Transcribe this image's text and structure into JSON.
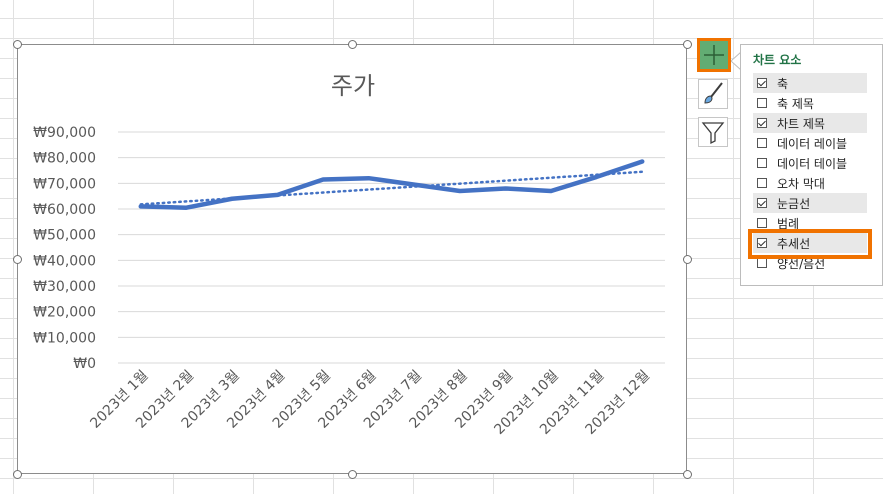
{
  "chart_data": {
    "type": "line",
    "title": "주가",
    "categories": [
      "2023년 1월",
      "2023년 2월",
      "2023년 3월",
      "2023년 4월",
      "2023년 5월",
      "2023년 6월",
      "2023년 7월",
      "2023년 8월",
      "2023년 9월",
      "2023년 10월",
      "2023년 11월",
      "2023년 12월"
    ],
    "series": [
      {
        "values": [
          61000,
          60500,
          64000,
          65500,
          71500,
          72000,
          69500,
          67000,
          68000,
          67000,
          72500,
          78500
        ],
        "color": "#4472c4"
      }
    ],
    "trendline": {
      "type": "linear",
      "style": "dotted",
      "values": [
        61800,
        74500
      ]
    },
    "ylim": [
      0,
      90000
    ],
    "yticks": [
      "₩0",
      "₩10,000",
      "₩20,000",
      "₩30,000",
      "₩40,000",
      "₩50,000",
      "₩60,000",
      "₩70,000",
      "₩80,000",
      "₩90,000"
    ],
    "grid": true,
    "legend": "none"
  },
  "panel": {
    "title": "차트 요소",
    "items": [
      {
        "label": "축",
        "checked": true
      },
      {
        "label": "축 제목",
        "checked": false
      },
      {
        "label": "차트 제목",
        "checked": true
      },
      {
        "label": "데이터 레이블",
        "checked": false
      },
      {
        "label": "데이터 테이블",
        "checked": false
      },
      {
        "label": "오차 막대",
        "checked": false
      },
      {
        "label": "눈금선",
        "checked": true
      },
      {
        "label": "범례",
        "checked": false
      },
      {
        "label": "추세선",
        "checked": true
      },
      {
        "label": "양선/음선",
        "checked": false
      }
    ]
  },
  "colors": {
    "accent": "#f07200",
    "panel_title": "#217346",
    "series": "#4472c4"
  },
  "icons": [
    "plus-icon",
    "brush-icon",
    "filter-icon"
  ]
}
